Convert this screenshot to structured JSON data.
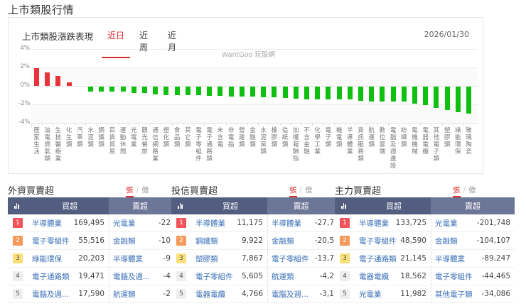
{
  "page": {
    "title": "上市類股行情"
  },
  "chart_card": {
    "title": "上市類股漲跌表現",
    "tabs": [
      {
        "label": "近日",
        "active": true
      },
      {
        "label": "近周",
        "active": false
      },
      {
        "label": "近月",
        "active": false
      }
    ],
    "date": "2026/01/30",
    "watermark": "WantGoo 玩股網"
  },
  "chart_data": {
    "type": "bar",
    "title": "上市類股漲跌表現",
    "xlabel": "",
    "ylabel": "",
    "ylim": [
      -4,
      4
    ],
    "yticks": [
      "4%",
      "2%",
      "0%",
      "-2%",
      "-4%"
    ],
    "grid": true,
    "colors": {
      "up": "#e8333a",
      "down": "#10c010"
    },
    "categories": [
      "居家生活",
      "油電燃氣類",
      "生技醫療業",
      "化生類",
      "汽車類",
      "水泥類",
      "鋼鐵類",
      "百貨貿易",
      "運動休閒",
      "光電業",
      "觀光餐旅",
      "通信網路業",
      "塑化類",
      "食品類",
      "其它類",
      "電子零組件",
      "電子通路類",
      "未含電",
      "非電指",
      "營建類",
      "金融類",
      "水泥窯類",
      "橡膠類",
      "造紙類",
      "加權報酬指",
      "不含金融",
      "化學工業",
      "電子類",
      "機電類",
      "半導體業",
      "資訊服務類",
      "航運類",
      "數位雲端",
      "電腦及週邊設",
      "紡織類",
      "電機機械",
      "電器電纜",
      "其他電子類",
      "塑膠類",
      "綠能環保",
      "玻璃陶瓷"
    ],
    "values": [
      1.95,
      1.5,
      1.05,
      0.4,
      0.0,
      -0.5,
      -0.5,
      -0.5,
      -0.5,
      -0.7,
      -0.7,
      -0.85,
      -0.9,
      -0.95,
      -0.95,
      -0.95,
      -1.0,
      -1.0,
      -1.05,
      -1.05,
      -1.1,
      -1.15,
      -1.15,
      -1.2,
      -1.3,
      -1.35,
      -1.35,
      -1.4,
      -1.4,
      -1.4,
      -1.5,
      -1.6,
      -1.6,
      -1.65,
      -1.65,
      -1.85,
      -2.0,
      -2.3,
      -2.55,
      -2.75,
      -2.9
    ]
  },
  "panels": [
    {
      "title": "外資買賣超",
      "unit_active": "張",
      "unit_inactive": "億",
      "header": {
        "buy": "買超",
        "sell": "賣超"
      },
      "rows": [
        {
          "rank": "1",
          "buy_name": "半導體業",
          "buy_val": "169,495",
          "sell_name": "光電業",
          "sell_val": "-22"
        },
        {
          "rank": "2",
          "buy_name": "電子零組件",
          "buy_val": "55,516",
          "sell_name": "金融類",
          "sell_val": "-10"
        },
        {
          "rank": "3",
          "buy_name": "綠能環保",
          "buy_val": "20,203",
          "sell_name": "半導體業",
          "sell_val": "-9"
        },
        {
          "rank": "4",
          "buy_name": "電子通路類",
          "buy_val": "19,471",
          "sell_name": "電腦及週...",
          "sell_val": "-4"
        },
        {
          "rank": "5",
          "buy_name": "電腦及週...",
          "buy_val": "17,590",
          "sell_name": "航運類",
          "sell_val": "-2"
        }
      ]
    },
    {
      "title": "投信買賣超",
      "unit_active": "張",
      "unit_inactive": "億",
      "header": {
        "buy": "買超",
        "sell": "賣超"
      },
      "rows": [
        {
          "rank": "1",
          "buy_name": "半導體業",
          "buy_val": "11,175",
          "sell_name": "半導體業",
          "sell_val": "-27,7"
        },
        {
          "rank": "2",
          "buy_name": "鋼鐵類",
          "buy_val": "9,922",
          "sell_name": "金融類",
          "sell_val": "-20,5"
        },
        {
          "rank": "3",
          "buy_name": "塑膠類",
          "buy_val": "7,867",
          "sell_name": "電子零組件",
          "sell_val": "-13,7"
        },
        {
          "rank": "4",
          "buy_name": "電子零組件",
          "buy_val": "5,605",
          "sell_name": "航運類",
          "sell_val": "-4,2"
        },
        {
          "rank": "5",
          "buy_name": "電器電纜",
          "buy_val": "4,766",
          "sell_name": "電腦及週...",
          "sell_val": "-3,1"
        }
      ]
    },
    {
      "title": "主力買賣超",
      "unit_active": "張",
      "unit_inactive": "億",
      "header": {
        "buy": "買超",
        "sell": "賣超"
      },
      "rows": [
        {
          "rank": "1",
          "buy_name": "半導體業",
          "buy_val": "133,725",
          "sell_name": "光電業",
          "sell_val": "-201,748"
        },
        {
          "rank": "2",
          "buy_name": "電子零組件",
          "buy_val": "48,590",
          "sell_name": "金融類",
          "sell_val": "-104,107"
        },
        {
          "rank": "3",
          "buy_name": "電子通路類",
          "buy_val": "21,145",
          "sell_name": "半導體業",
          "sell_val": "-89,247"
        },
        {
          "rank": "4",
          "buy_name": "電器電纜",
          "buy_val": "18,562",
          "sell_name": "電子零組件",
          "sell_val": "-44,465"
        },
        {
          "rank": "5",
          "buy_name": "光電業",
          "buy_val": "11,982",
          "sell_name": "其他電子類",
          "sell_val": "-34,086"
        }
      ]
    }
  ]
}
